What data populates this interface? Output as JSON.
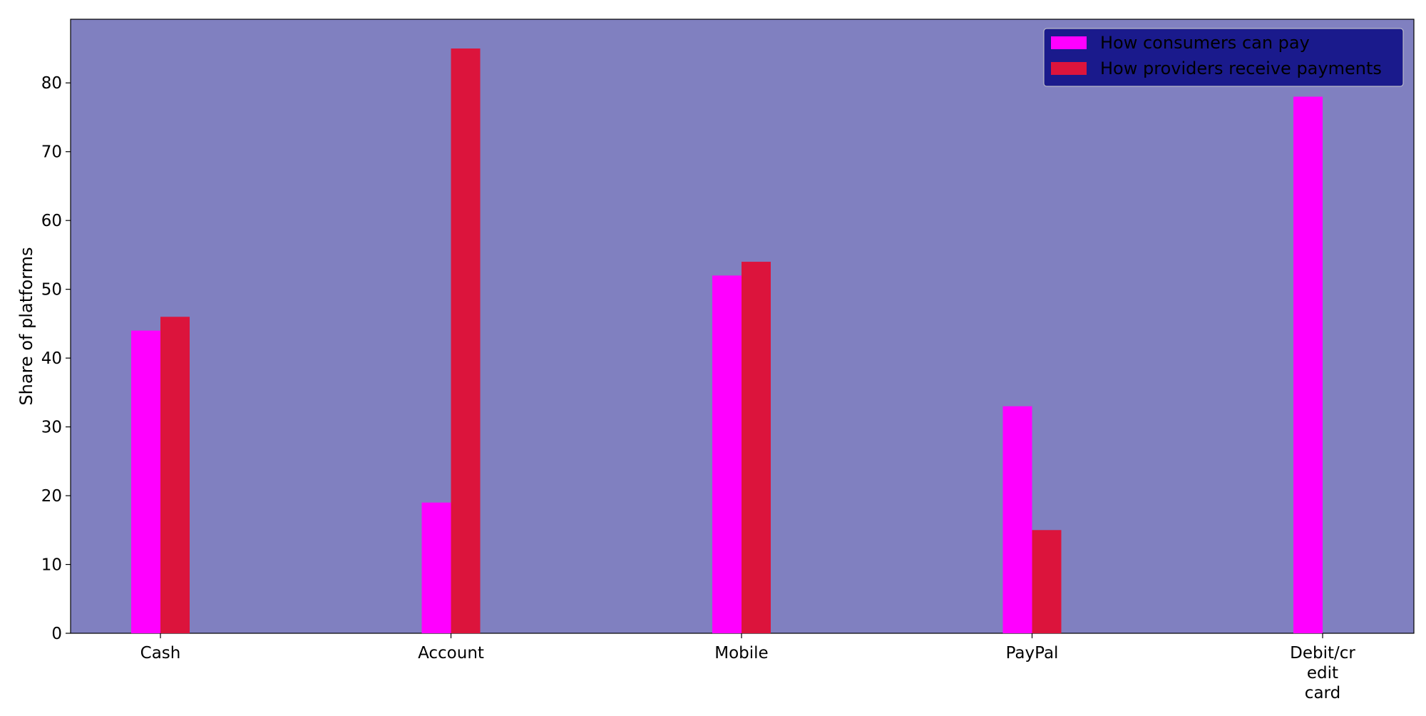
{
  "chart_data": {
    "type": "bar",
    "categories": [
      "Cash",
      "Account",
      "Mobile",
      "PayPal",
      "Debit/credit card"
    ],
    "category_tick_lines": [
      [
        "Cash"
      ],
      [
        "Account"
      ],
      [
        "Mobile"
      ],
      [
        "PayPal"
      ],
      [
        "Debit/cr",
        "edit",
        "card"
      ]
    ],
    "series": [
      {
        "name": "How consumers can pay",
        "values": [
          44,
          19,
          52,
          33,
          78
        ],
        "color": "#ff00ff"
      },
      {
        "name": "How providers receive payments",
        "values": [
          46,
          85,
          54,
          15,
          0
        ],
        "color": "#dc143c"
      }
    ],
    "xlabel": "",
    "ylabel": "Share of platforms",
    "ylim": [
      0,
      89.25
    ],
    "yticks": [
      0,
      10,
      20,
      30,
      40,
      50,
      60,
      70,
      80
    ],
    "grid": false,
    "legend_position": "top-right",
    "plot_background": "#8080c0",
    "legend_background": "#1a1a8c"
  }
}
